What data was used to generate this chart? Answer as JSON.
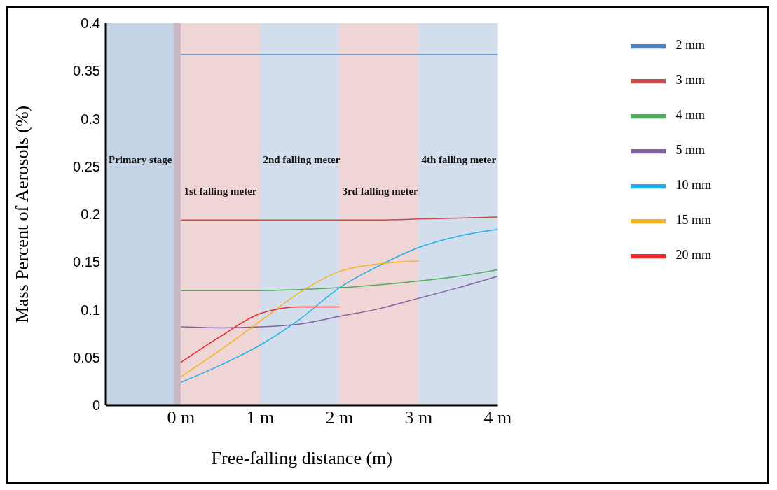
{
  "chart_data": {
    "type": "line",
    "xlabel": "Free-falling distance (m)",
    "ylabel": "Mass Percent of Aerosols (%)",
    "x": [
      0,
      0.5,
      1,
      1.5,
      2,
      2.5,
      3,
      3.5,
      4
    ],
    "xlim": [
      -0.95,
      4
    ],
    "xticks": [
      {
        "value": 0,
        "label": "0 m"
      },
      {
        "value": 1,
        "label": "1 m"
      },
      {
        "value": 2,
        "label": "2 m"
      },
      {
        "value": 3,
        "label": "3 m"
      },
      {
        "value": 4,
        "label": "4 m"
      }
    ],
    "ylim": [
      0,
      0.4
    ],
    "yticks": [
      0,
      0.05,
      0.1,
      0.15,
      0.2,
      0.25,
      0.3,
      0.35,
      0.4
    ],
    "grid": false,
    "legend": "top right",
    "series": [
      {
        "name": "2 mm",
        "color": "#4f81bd",
        "values": [
          0.367,
          0.367,
          0.367,
          0.367,
          0.367,
          0.367,
          0.367,
          0.367,
          0.367
        ]
      },
      {
        "name": "3 mm",
        "color": "#c0504d",
        "values": [
          0.194,
          0.194,
          0.194,
          0.194,
          0.194,
          0.194,
          0.195,
          0.196,
          0.197
        ]
      },
      {
        "name": "4 mm",
        "color": "#4ead5b",
        "values": [
          0.12,
          0.12,
          0.12,
          0.121,
          0.123,
          0.126,
          0.13,
          0.135,
          0.142
        ]
      },
      {
        "name": "5 mm",
        "color": "#8064a2",
        "values": [
          0.082,
          0.081,
          0.082,
          0.085,
          0.093,
          0.101,
          0.112,
          0.123,
          0.135
        ]
      },
      {
        "name": "10 mm",
        "color": "#1fb0e8",
        "values": [
          0.024,
          0.042,
          0.063,
          0.09,
          0.123,
          0.146,
          0.165,
          0.177,
          0.184
        ]
      },
      {
        "name": "15 mm",
        "color": "#f5b324",
        "values": [
          0.03,
          0.058,
          0.088,
          0.118,
          0.14,
          0.148,
          0.151,
          null,
          null
        ]
      },
      {
        "name": "20 mm",
        "color": "#e8292b",
        "values": [
          0.045,
          0.072,
          0.096,
          0.103,
          0.103,
          null,
          null,
          null,
          null
        ]
      }
    ],
    "bands": [
      {
        "axis": "x",
        "from": -0.95,
        "to": -0.09,
        "label": "Primary stage",
        "color": "#c5d3e6"
      },
      {
        "axis": "x",
        "from": -0.09,
        "to": 0,
        "color": "#c8b8c6"
      },
      {
        "axis": "x",
        "from": 0,
        "to": 1,
        "label": "1st falling meter",
        "color": "#efd5d5"
      },
      {
        "axis": "x",
        "from": 1,
        "to": 2,
        "label": "2nd falling meter",
        "color": "#d3deec"
      },
      {
        "axis": "x",
        "from": 2,
        "to": 3,
        "label": "3rd falling meter",
        "color": "#efd5d5"
      },
      {
        "axis": "x",
        "from": 3,
        "to": 4,
        "label": "4th falling meter",
        "color": "#d3deec"
      }
    ]
  }
}
